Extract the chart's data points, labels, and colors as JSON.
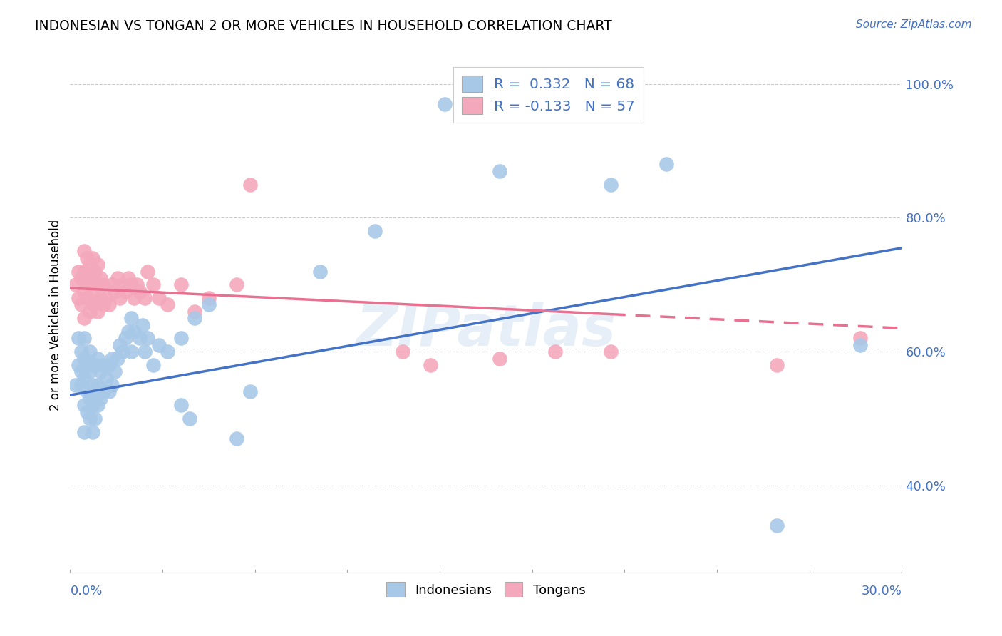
{
  "title": "INDONESIAN VS TONGAN 2 OR MORE VEHICLES IN HOUSEHOLD CORRELATION CHART",
  "source": "Source: ZipAtlas.com",
  "ylabel": "2 or more Vehicles in Household",
  "ytick_labels": [
    "100.0%",
    "80.0%",
    "60.0%",
    "40.0%"
  ],
  "ytick_values": [
    1.0,
    0.8,
    0.6,
    0.4
  ],
  "xlim": [
    0.0,
    0.3
  ],
  "ylim": [
    0.27,
    1.04
  ],
  "legend1_R": "0.332",
  "legend1_N": "68",
  "legend2_R": "-0.133",
  "legend2_N": "57",
  "blue_color": "#a8c8e8",
  "pink_color": "#f4a8bc",
  "line_blue": "#4472c4",
  "line_pink": "#e87090",
  "watermark": "ZIPatlas",
  "blue_line_y0": 0.535,
  "blue_line_y1": 0.755,
  "pink_line_y0": 0.695,
  "pink_line_y1": 0.635,
  "indonesian_x": [
    0.002,
    0.003,
    0.003,
    0.004,
    0.004,
    0.004,
    0.005,
    0.005,
    0.005,
    0.005,
    0.005,
    0.006,
    0.006,
    0.006,
    0.007,
    0.007,
    0.007,
    0.007,
    0.008,
    0.008,
    0.008,
    0.008,
    0.009,
    0.009,
    0.009,
    0.01,
    0.01,
    0.01,
    0.011,
    0.011,
    0.012,
    0.012,
    0.013,
    0.014,
    0.014,
    0.015,
    0.015,
    0.016,
    0.017,
    0.018,
    0.019,
    0.02,
    0.021,
    0.022,
    0.022,
    0.023,
    0.025,
    0.026,
    0.027,
    0.028,
    0.03,
    0.032,
    0.035,
    0.04,
    0.04,
    0.043,
    0.045,
    0.05,
    0.06,
    0.065,
    0.09,
    0.11,
    0.135,
    0.155,
    0.195,
    0.215,
    0.255,
    0.285
  ],
  "indonesian_y": [
    0.55,
    0.58,
    0.62,
    0.55,
    0.57,
    0.6,
    0.48,
    0.52,
    0.56,
    0.59,
    0.62,
    0.51,
    0.54,
    0.58,
    0.5,
    0.53,
    0.57,
    0.6,
    0.48,
    0.52,
    0.55,
    0.58,
    0.5,
    0.54,
    0.58,
    0.52,
    0.55,
    0.59,
    0.53,
    0.57,
    0.54,
    0.58,
    0.56,
    0.54,
    0.58,
    0.55,
    0.59,
    0.57,
    0.59,
    0.61,
    0.6,
    0.62,
    0.63,
    0.65,
    0.6,
    0.63,
    0.62,
    0.64,
    0.6,
    0.62,
    0.58,
    0.61,
    0.6,
    0.62,
    0.52,
    0.5,
    0.65,
    0.67,
    0.47,
    0.54,
    0.72,
    0.78,
    0.97,
    0.87,
    0.85,
    0.88,
    0.34,
    0.61
  ],
  "tongan_x": [
    0.002,
    0.003,
    0.003,
    0.004,
    0.004,
    0.005,
    0.005,
    0.005,
    0.005,
    0.006,
    0.006,
    0.006,
    0.007,
    0.007,
    0.007,
    0.008,
    0.008,
    0.008,
    0.009,
    0.009,
    0.01,
    0.01,
    0.01,
    0.011,
    0.011,
    0.012,
    0.012,
    0.013,
    0.014,
    0.015,
    0.016,
    0.017,
    0.018,
    0.019,
    0.02,
    0.021,
    0.022,
    0.023,
    0.024,
    0.025,
    0.027,
    0.028,
    0.03,
    0.032,
    0.035,
    0.04,
    0.045,
    0.05,
    0.06,
    0.065,
    0.12,
    0.13,
    0.155,
    0.175,
    0.195,
    0.255,
    0.285
  ],
  "tongan_y": [
    0.7,
    0.68,
    0.72,
    0.67,
    0.71,
    0.65,
    0.69,
    0.72,
    0.75,
    0.68,
    0.71,
    0.74,
    0.66,
    0.7,
    0.73,
    0.67,
    0.71,
    0.74,
    0.68,
    0.72,
    0.66,
    0.7,
    0.73,
    0.68,
    0.71,
    0.67,
    0.7,
    0.68,
    0.67,
    0.7,
    0.69,
    0.71,
    0.68,
    0.7,
    0.69,
    0.71,
    0.7,
    0.68,
    0.7,
    0.69,
    0.68,
    0.72,
    0.7,
    0.68,
    0.67,
    0.7,
    0.66,
    0.68,
    0.7,
    0.85,
    0.6,
    0.58,
    0.59,
    0.6,
    0.6,
    0.58,
    0.62
  ]
}
